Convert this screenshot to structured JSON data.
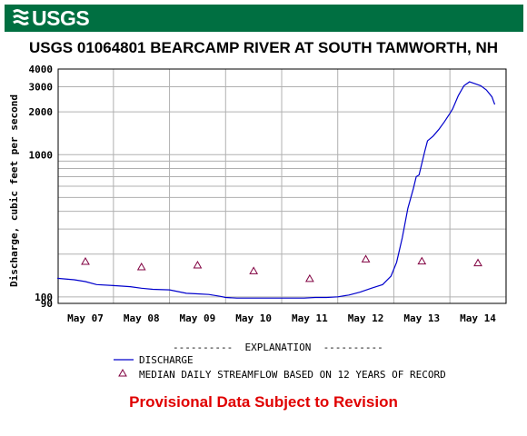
{
  "header": {
    "logo_text": "USGS",
    "logo_color": "#006f41"
  },
  "chart_data": {
    "type": "line",
    "title": "USGS 01064801 BEARCAMP RIVER AT SOUTH TAMWORTH, NH",
    "ylabel": "Discharge, cubic feet per second",
    "xlabel": "",
    "y_scale": "log",
    "ylim": [
      90,
      4000
    ],
    "y_tick_labels": [
      "90",
      "100",
      "1000",
      "2000",
      "3000",
      "4000"
    ],
    "x_tick_labels": [
      "May 07",
      "May 08",
      "May 09",
      "May 10",
      "May 11",
      "May 12",
      "May 13",
      "May 14"
    ],
    "grid": true,
    "series": [
      {
        "name": "DISCHARGE",
        "color": "#0000cc",
        "x": [
          6.5,
          6.8,
          7.0,
          7.2,
          7.5,
          7.8,
          8.0,
          8.2,
          8.5,
          8.8,
          9.0,
          9.2,
          9.4,
          9.5,
          9.7,
          10.0,
          10.3,
          10.5,
          10.7,
          10.9,
          11.1,
          11.3,
          11.5,
          11.7,
          11.9,
          12.1,
          12.3,
          12.45,
          12.55,
          12.65,
          12.75,
          12.85,
          12.9,
          12.95,
          13.05,
          13.1,
          13.2,
          13.3,
          13.4,
          13.5,
          13.55,
          13.65,
          13.75,
          13.85,
          13.95,
          14.05,
          14.15,
          14.25,
          14.3
        ],
        "values": [
          135,
          132,
          128,
          122,
          120,
          118,
          115,
          113,
          112,
          106,
          105,
          104,
          101,
          99,
          98,
          98,
          98,
          98,
          98,
          98,
          99,
          99,
          100,
          103,
          108,
          115,
          122,
          140,
          175,
          260,
          420,
          580,
          700,
          720,
          1050,
          1250,
          1350,
          1500,
          1700,
          1950,
          2100,
          2600,
          3050,
          3250,
          3150,
          3050,
          2850,
          2550,
          2250
        ]
      }
    ],
    "median": {
      "name": "MEDIAN DAILY STREAMFLOW BASED ON 12 YEARS OF RECORD",
      "color": "#800040",
      "x": [
        7,
        8,
        9,
        10,
        11,
        12,
        13,
        14
      ],
      "values": [
        177,
        162,
        167,
        152,
        134,
        184,
        178,
        173
      ]
    }
  },
  "legend": {
    "title": "----------  EXPLANATION  ----------",
    "discharge_label": "DISCHARGE",
    "median_label": "MEDIAN DAILY STREAMFLOW BASED ON 12 YEARS OF RECORD"
  },
  "footer": {
    "provisional": "Provisional Data Subject to Revision",
    "provisional_color": "#e00000"
  }
}
